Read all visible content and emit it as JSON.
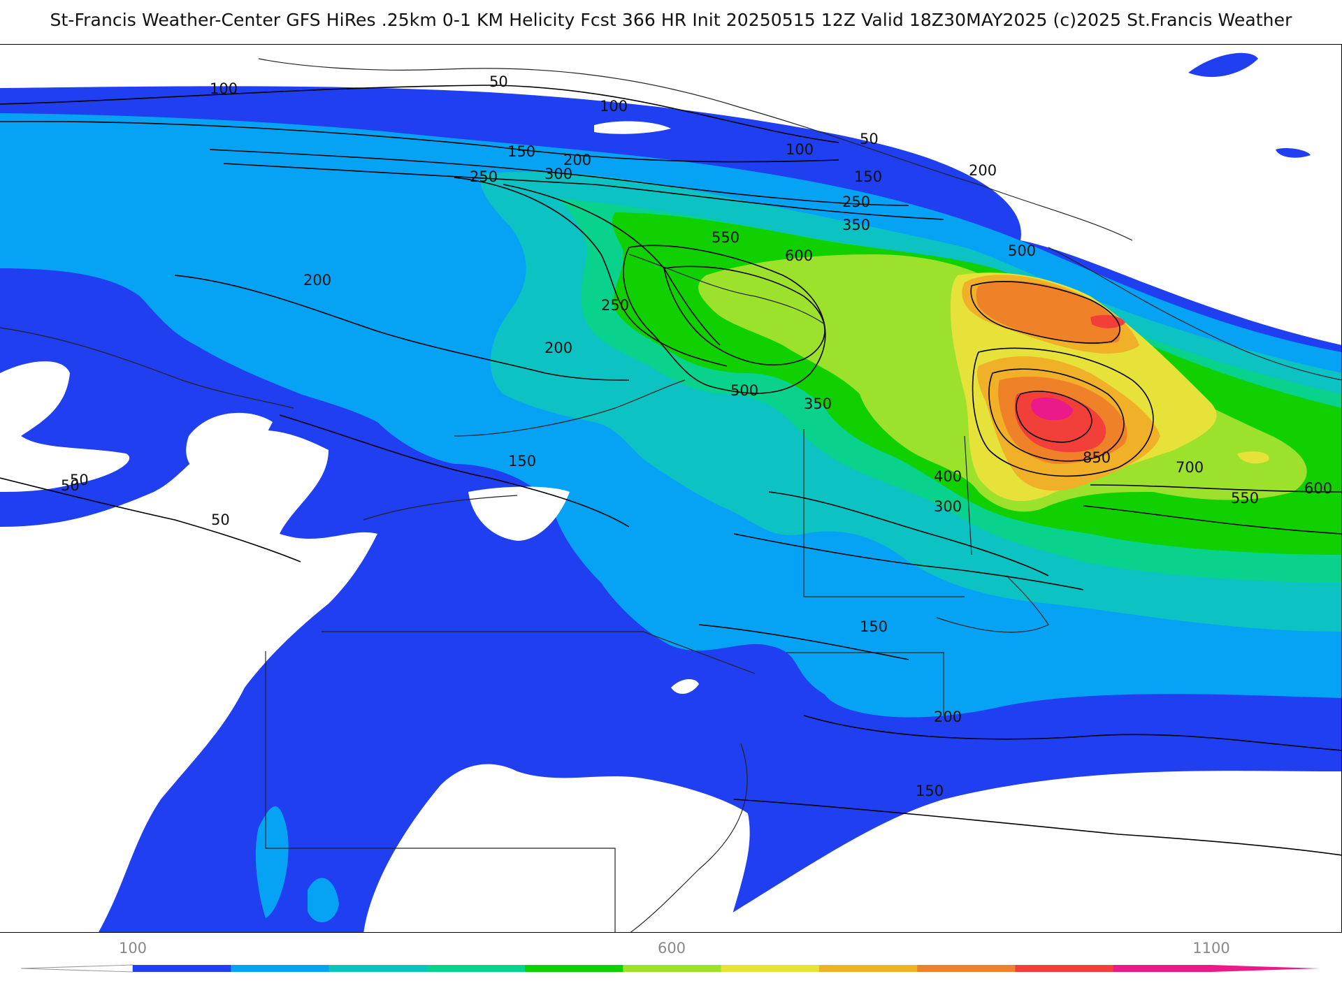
{
  "title": "St-Francis Weather-Center GFS HiRes .25km 0-1 KM Helicity Fcst 366 HR Init 20250515 12Z  Valid 18Z30MAY2025    (c)2025 St.Francis Weather",
  "map": {
    "field": "0-1 KM Helicity",
    "contour_labels": [
      "50",
      "100",
      "50",
      "100",
      "150",
      "200",
      "250",
      "300",
      "100",
      "50",
      "150",
      "200",
      "250",
      "350",
      "500",
      "550",
      "600",
      "200",
      "250",
      "200",
      "500",
      "350",
      "150",
      "50",
      "50",
      "400",
      "300",
      "850",
      "700",
      "550",
      "600",
      "150",
      "200",
      "150"
    ]
  },
  "colorbar": {
    "ticks": [
      "100",
      "600",
      "1100"
    ],
    "colors": [
      "#1f3ff0",
      "#06a3f5",
      "#0cc2c2",
      "#08d28c",
      "#10d000",
      "#9ce22c",
      "#e6e23a",
      "#f0b028",
      "#ef8228",
      "#f23f3a",
      "#ea1a8a"
    ]
  },
  "colors": {
    "band_50": "#1f3ff0",
    "band_100": "#06a3f5",
    "band_250": "#0cc2c2",
    "band_400": "#08d28c",
    "band_500": "#10d000",
    "band_600": "#9ce22c",
    "band_700": "#e6e23a",
    "band_800": "#f0b028",
    "band_850": "#ef8228",
    "band_950": "#f23f3a",
    "band_1050": "#ea1a8a"
  }
}
